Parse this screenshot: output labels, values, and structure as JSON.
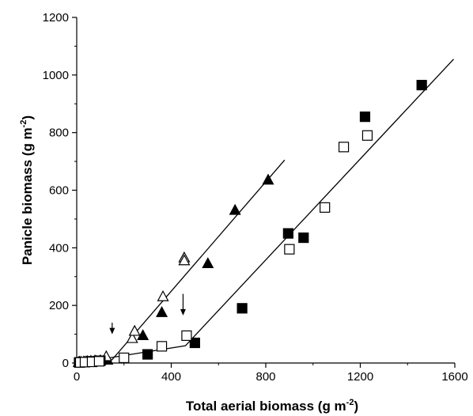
{
  "chart_data": {
    "type": "scatter",
    "xlabel": "Total aerial biomass (g m",
    "xlabel_sup": "-2",
    "xlabel_close": ")",
    "ylabel": "Panicle biomass (g m",
    "ylabel_sup": "-2",
    "ylabel_close": ")",
    "xlim": [
      0,
      1600
    ],
    "ylim": [
      0,
      1200
    ],
    "x_ticks": [
      0,
      400,
      800,
      1200,
      1600
    ],
    "y_ticks": [
      0,
      200,
      400,
      600,
      800,
      1000,
      1200
    ],
    "grid": false,
    "series": [
      {
        "marker": "triangle-filled",
        "color": "#000000",
        "points": [
          [
            8,
            2
          ],
          [
            18,
            3
          ],
          [
            30,
            4
          ],
          [
            45,
            5
          ],
          [
            60,
            6
          ],
          [
            80,
            7
          ],
          [
            100,
            8
          ],
          [
            130,
            10
          ],
          [
            280,
            95
          ],
          [
            360,
            175
          ],
          [
            555,
            345
          ],
          [
            670,
            530
          ],
          [
            810,
            635
          ]
        ]
      },
      {
        "marker": "triangle-open",
        "color": "#000000",
        "points": [
          [
            12,
            3
          ],
          [
            40,
            4
          ],
          [
            75,
            6
          ],
          [
            125,
            22
          ],
          [
            235,
            85
          ],
          [
            245,
            110
          ],
          [
            365,
            230
          ],
          [
            455,
            365
          ],
          [
            455,
            355
          ]
        ]
      },
      {
        "marker": "square-filled",
        "color": "#000000",
        "points": [
          [
            10,
            2
          ],
          [
            25,
            3
          ],
          [
            50,
            5
          ],
          [
            70,
            6
          ],
          [
            100,
            8
          ],
          [
            300,
            30
          ],
          [
            500,
            70
          ],
          [
            700,
            190
          ],
          [
            895,
            450
          ],
          [
            960,
            435
          ],
          [
            1220,
            855
          ],
          [
            1460,
            965
          ]
        ]
      },
      {
        "marker": "square-open",
        "color": "#000000",
        "points": [
          [
            15,
            2
          ],
          [
            35,
            3
          ],
          [
            65,
            4
          ],
          [
            95,
            6
          ],
          [
            200,
            18
          ],
          [
            360,
            58
          ],
          [
            465,
            95
          ],
          [
            900,
            395
          ],
          [
            1050,
            540
          ],
          [
            1130,
            750
          ],
          [
            1230,
            790
          ]
        ]
      }
    ],
    "fit_lines": [
      {
        "points": [
          [
            0,
            0
          ],
          [
            150,
            12
          ],
          [
            880,
            705
          ]
        ]
      },
      {
        "points": [
          [
            0,
            0
          ],
          [
            460,
            60
          ],
          [
            1595,
            1055
          ]
        ]
      }
    ],
    "arrows": [
      {
        "x": 150,
        "y_from": 140,
        "y_to": 100
      },
      {
        "x": 450,
        "y_from": 240,
        "y_to": 165
      }
    ]
  }
}
